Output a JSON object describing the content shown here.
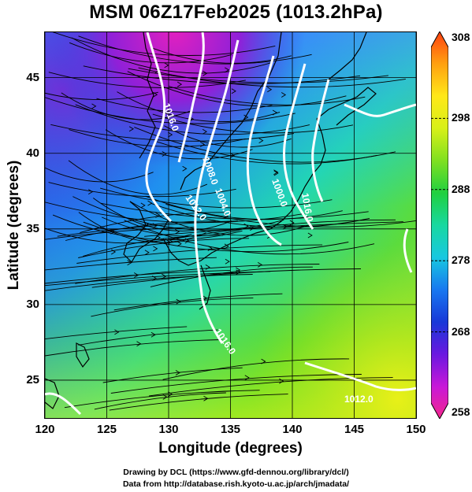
{
  "title": "MSM 06Z17Feb2025 (1013.2hPa)",
  "map": {
    "lon_range": [
      120,
      150
    ],
    "lat_range": [
      22.5,
      48
    ],
    "x_ticks": [
      "120",
      "125",
      "130",
      "135",
      "140",
      "145",
      "150"
    ],
    "y_ticks": [
      "25",
      "30",
      "35",
      "40",
      "45"
    ],
    "xlabel": "Longitude (degrees)",
    "ylabel": "Latitude  (degrees)",
    "grid": true,
    "field": "temperature (K) shading with streamlines and white pressure contours",
    "contour_labels": [
      "1016.0",
      "1012.0",
      "1008.0",
      "1004.0",
      "1000.0",
      "1016.0",
      "1012.0",
      "1016.0"
    ]
  },
  "colorbar": {
    "ticks": [
      "308",
      "298",
      "288",
      "278",
      "268",
      "258"
    ],
    "range": [
      258,
      308
    ],
    "colors": [
      "#f4288c",
      "#c818d8",
      "#6a18e0",
      "#1838d8",
      "#1878f0",
      "#18c8e0",
      "#18d8a0",
      "#20d040",
      "#80e020",
      "#d8f018",
      "#ffe818",
      "#ffa010",
      "#ff4010"
    ]
  },
  "credits": {
    "line1": "Drawing by DCL (https://www.gfd-dennou.org/library/dcl/)",
    "line2": "Data from http://database.rish.kyoto-u.ac.jp/arch/jmadata/"
  }
}
